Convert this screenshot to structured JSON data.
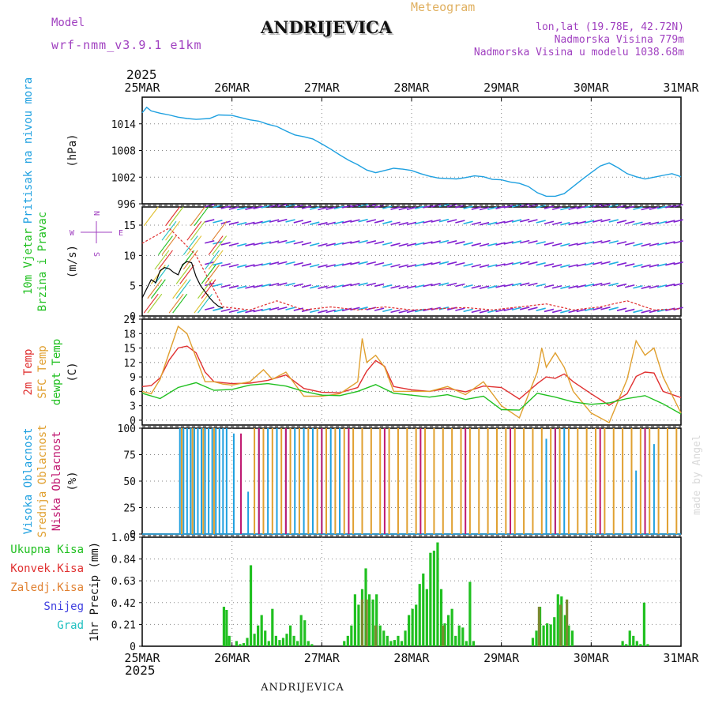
{
  "header": {
    "model_label": "Model",
    "model_name": "wrf-nmm_v3.9.1 e1km",
    "title": "ANDRIJEVICA",
    "meteogram_label": "Meteogram",
    "lonlat": "lon,lat (19.78E, 42.72N)",
    "elevation": "Nadmorska Visina 779m",
    "model_elevation": "Nadmorska Visina u modelu 1038.68m",
    "year_top": "2025",
    "year_bottom": "2025",
    "footer_station": "ANDRIJEVICA",
    "watermark": "made by Angel"
  },
  "colors": {
    "pressure": "#1ea0e0",
    "wind_speed": "#000000",
    "gust": "#e03030",
    "temp2m": "#e03030",
    "sfc": "#e0a030",
    "dew": "#20c020",
    "high_cloud": "#1ea0e0",
    "mid_cloud": "#e0a030",
    "low_cloud": "#c01870",
    "total_rain": "#20c020",
    "conv_rain": "#e03030",
    "frz_rain": "#e08030",
    "snow": "#4040e0",
    "hail": "#20c0c0",
    "axis_label_purple": "#a040c0"
  },
  "chart_data": [
    {
      "type": "line",
      "panel": "pressure",
      "ylabel": "(hPa)",
      "side_labels": [
        "Pritisak na nivou mora"
      ],
      "x_categories": [
        "25MAR",
        "26MAR",
        "27MAR",
        "28MAR",
        "29MAR",
        "30MAR",
        "31MAR"
      ],
      "ylim": [
        996,
        1020
      ],
      "yticks": [
        996,
        1002,
        1008,
        1014
      ],
      "series": [
        {
          "x": [
            0,
            0.05,
            0.1,
            0.2,
            0.3,
            0.4,
            0.5,
            0.6,
            0.75,
            0.85,
            1.0,
            1.1,
            1.2,
            1.3,
            1.4,
            1.5,
            1.6,
            1.7,
            1.8,
            1.9,
            2.0,
            2.1,
            2.2,
            2.3,
            2.4,
            2.5,
            2.6,
            2.7,
            2.8,
            2.9,
            3.0,
            3.1,
            3.2,
            3.3,
            3.4,
            3.5,
            3.6,
            3.7,
            3.8,
            3.9,
            4.0,
            4.1,
            4.2,
            4.3,
            4.4,
            4.5,
            4.6,
            4.7,
            4.8,
            4.9,
            5.0,
            5.1,
            5.2,
            5.3,
            5.4,
            5.5,
            5.6,
            5.7,
            5.8,
            5.9,
            6.0
          ],
          "values": [
            1016.5,
            1017.7,
            1016.9,
            1016.4,
            1016.0,
            1015.5,
            1015.2,
            1015.0,
            1015.2,
            1016.0,
            1015.9,
            1015.4,
            1014.9,
            1014.6,
            1013.9,
            1013.4,
            1012.4,
            1011.5,
            1011.1,
            1010.6,
            1009.5,
            1008.3,
            1007.0,
            1005.8,
            1004.8,
            1003.6,
            1003.0,
            1003.5,
            1004.0,
            1003.8,
            1003.5,
            1002.8,
            1002.2,
            1001.8,
            1001.7,
            1001.6,
            1001.9,
            1002.3,
            1002.1,
            1001.5,
            1001.4,
            1000.9,
            1000.6,
            999.9,
            998.5,
            997.7,
            997.7,
            998.3,
            999.9,
            1001.5,
            1003.0,
            1004.5,
            1005.2,
            1004.1,
            1002.8,
            1002.1,
            1001.6,
            1002.0,
            1002.4,
            1002.8,
            1002.1
          ]
        }
      ]
    },
    {
      "type": "line",
      "panel": "wind",
      "ylabel": "(m/s)",
      "side_labels": [
        "10m Vjetar",
        "Brzina i Pravac"
      ],
      "compass_labels": [
        "N",
        "W",
        "E",
        "S"
      ],
      "ylim": [
        0,
        18
      ],
      "yticks": [
        0,
        5,
        10,
        15
      ],
      "series": [
        {
          "name": "speed",
          "x": [
            0,
            0.05,
            0.1,
            0.15,
            0.2,
            0.25,
            0.3,
            0.35,
            0.4,
            0.45,
            0.5,
            0.55,
            0.6,
            0.65,
            0.7,
            0.75,
            0.8,
            0.85,
            0.9
          ],
          "values": [
            3.0,
            4.5,
            6.0,
            5.5,
            7.5,
            8.0,
            7.8,
            7.2,
            6.8,
            8.5,
            9.0,
            8.8,
            6.5,
            5.0,
            4.0,
            3.0,
            2.2,
            1.6,
            1.3
          ]
        },
        {
          "name": "gust",
          "x": [
            0,
            0.3,
            0.6,
            0.9,
            1.2,
            1.5,
            1.8,
            2.1,
            2.4,
            2.7,
            3.0,
            3.3,
            3.6,
            3.9,
            4.2,
            4.5,
            4.8,
            5.1,
            5.4,
            5.7,
            6.0
          ],
          "values": [
            12.0,
            14.5,
            10.0,
            1.5,
            1.0,
            2.5,
            1.0,
            1.5,
            1.0,
            1.5,
            1.0,
            1.2,
            1.4,
            1.0,
            1.5,
            2.0,
            1.0,
            1.5,
            2.5,
            1.0,
            1.2
          ]
        }
      ]
    },
    {
      "type": "line",
      "panel": "temperature",
      "ylabel": "(C)",
      "side_labels": [
        "2m Temp",
        "SFC Temp",
        "dewpt Temp"
      ],
      "ylim": [
        -1,
        21
      ],
      "yticks": [
        0,
        3,
        6,
        9,
        12,
        15,
        18,
        21
      ],
      "series": [
        {
          "name": "2m Temp",
          "x": [
            0,
            0.1,
            0.2,
            0.3,
            0.4,
            0.5,
            0.6,
            0.7,
            0.8,
            0.9,
            1.0,
            1.2,
            1.4,
            1.6,
            1.8,
            2.0,
            2.2,
            2.4,
            2.5,
            2.6,
            2.7,
            2.8,
            3.0,
            3.2,
            3.4,
            3.6,
            3.8,
            4.0,
            4.2,
            4.4,
            4.5,
            4.6,
            4.7,
            4.8,
            5.0,
            5.2,
            5.4,
            5.5,
            5.6,
            5.7,
            5.8,
            6.0
          ],
          "values": [
            7.0,
            7.2,
            8.8,
            12.5,
            15.0,
            15.4,
            14.0,
            10.0,
            8.0,
            7.8,
            7.6,
            7.7,
            8.3,
            9.4,
            6.6,
            5.8,
            5.7,
            6.8,
            10.2,
            12.4,
            11.2,
            7.0,
            6.3,
            6.0,
            6.6,
            5.9,
            7.1,
            6.8,
            4.4,
            7.6,
            9.0,
            8.7,
            9.6,
            8.0,
            5.5,
            3.1,
            5.5,
            9.1,
            10.0,
            9.8,
            6.0,
            4.7
          ]
        },
        {
          "name": "SFC Temp",
          "x": [
            0,
            0.1,
            0.2,
            0.3,
            0.4,
            0.5,
            0.6,
            0.7,
            0.8,
            0.9,
            1.0,
            1.2,
            1.35,
            1.45,
            1.6,
            1.8,
            2.0,
            2.2,
            2.4,
            2.45,
            2.5,
            2.6,
            2.7,
            2.8,
            3.0,
            3.2,
            3.4,
            3.6,
            3.8,
            4.0,
            4.2,
            4.4,
            4.45,
            4.5,
            4.6,
            4.7,
            4.8,
            5.0,
            5.2,
            5.4,
            5.5,
            5.6,
            5.7,
            5.8,
            6.0
          ],
          "values": [
            6.0,
            5.5,
            8.5,
            14.0,
            19.5,
            18.0,
            13.0,
            8.0,
            8.0,
            7.5,
            7.3,
            8.0,
            10.5,
            8.5,
            10.0,
            5.0,
            5.0,
            5.5,
            8.0,
            17.0,
            12.0,
            13.5,
            11.0,
            6.0,
            6.0,
            6.0,
            7.0,
            5.3,
            8.0,
            3.0,
            0.5,
            10.0,
            15.0,
            11.0,
            14.0,
            11.0,
            6.0,
            1.5,
            -0.5,
            8.5,
            16.5,
            13.5,
            15.0,
            9.0,
            1.5
          ]
        },
        {
          "name": "dewpt Temp",
          "x": [
            0,
            0.2,
            0.4,
            0.6,
            0.8,
            1.0,
            1.2,
            1.4,
            1.6,
            1.8,
            2.0,
            2.2,
            2.4,
            2.6,
            2.8,
            3.0,
            3.2,
            3.4,
            3.6,
            3.8,
            4.0,
            4.2,
            4.4,
            4.6,
            4.8,
            5.0,
            5.2,
            5.4,
            5.6,
            5.8,
            6.0
          ],
          "values": [
            5.6,
            4.5,
            6.8,
            7.8,
            6.2,
            6.4,
            7.3,
            7.6,
            7.1,
            6.0,
            5.2,
            5.1,
            6.0,
            7.4,
            5.6,
            5.2,
            4.8,
            5.3,
            4.3,
            5.0,
            2.2,
            2.1,
            5.6,
            4.8,
            3.8,
            3.3,
            3.6,
            4.5,
            5.1,
            3.4,
            1.3
          ]
        }
      ]
    },
    {
      "type": "bar",
      "panel": "cloud",
      "ylabel": "(%)",
      "side_labels": [
        "Visoka Oblacnost",
        "Srednja Oblacnost",
        "Niska Oblacnost"
      ],
      "ylim": [
        0,
        100
      ],
      "yticks": [
        0,
        25,
        50,
        75,
        100
      ],
      "series": [
        {
          "name": "Visoka Oblacnost",
          "x": [
            0.42,
            0.46,
            0.5,
            0.54,
            0.58,
            0.62,
            0.66,
            0.7,
            0.74,
            0.78,
            0.82,
            0.86,
            0.9,
            0.94,
            1.02,
            1.1,
            1.18,
            1.3,
            1.4,
            1.5,
            1.6,
            1.7,
            1.8,
            1.9,
            2.0,
            2.1,
            2.2,
            4.5,
            4.6,
            4.7,
            5.5,
            5.6,
            5.7
          ],
          "values": [
            100,
            100,
            100,
            100,
            100,
            100,
            100,
            100,
            100,
            100,
            100,
            100,
            100,
            100,
            95,
            65,
            40,
            100,
            100,
            100,
            100,
            100,
            100,
            100,
            100,
            100,
            100,
            90,
            100,
            100,
            60,
            100,
            85
          ]
        },
        {
          "name": "Srednja Oblacnost",
          "x": [
            0.44,
            0.56,
            0.68,
            0.8,
            1.25,
            1.35,
            1.45,
            1.55,
            1.65,
            1.75,
            1.85,
            1.95,
            2.05,
            2.15,
            2.25,
            2.35,
            2.45,
            2.55,
            2.65,
            2.75,
            2.85,
            2.95,
            3.05,
            3.15,
            3.25,
            3.35,
            3.45,
            3.55,
            3.65,
            3.75,
            3.85,
            3.95,
            4.05,
            4.15,
            4.25,
            4.35,
            4.45,
            4.55,
            4.65,
            4.75,
            4.85,
            4.95,
            5.05,
            5.15,
            5.25,
            5.35,
            5.45,
            5.55,
            5.65,
            5.75,
            5.85,
            5.95
          ],
          "values": [
            100,
            100,
            100,
            100,
            100,
            100,
            100,
            100,
            100,
            100,
            100,
            100,
            100,
            100,
            100,
            100,
            100,
            100,
            100,
            100,
            100,
            100,
            100,
            100,
            100,
            100,
            100,
            100,
            100,
            100,
            100,
            100,
            100,
            100,
            100,
            100,
            100,
            100,
            100,
            100,
            100,
            100,
            100,
            100,
            100,
            100,
            100,
            100,
            100,
            100,
            100,
            100
          ]
        },
        {
          "name": "Niska Oblacnost",
          "x": [
            1.1,
            1.3,
            1.6,
            2.0,
            2.3,
            2.7,
            3.1,
            3.6,
            4.1,
            4.6,
            5.1,
            5.6
          ],
          "values": [
            95,
            100,
            100,
            100,
            100,
            100,
            100,
            100,
            100,
            100,
            100,
            100
          ]
        }
      ]
    },
    {
      "type": "bar",
      "panel": "precip",
      "ylabel": "1hr Precip (mm)",
      "side_labels": [
        "Ukupna Kisa",
        "Konvek.Kisa",
        "Zaledj.Kisa",
        "Snijeg",
        "Grad"
      ],
      "x_categories": [
        "25MAR",
        "26MAR",
        "27MAR",
        "28MAR",
        "29MAR",
        "30MAR",
        "31MAR"
      ],
      "ylim": [
        0,
        1.05
      ],
      "yticks": [
        0,
        0.21,
        0.42,
        0.63,
        0.84,
        1.05
      ],
      "series": [
        {
          "name": "Ukupna Kisa",
          "x": [
            0.91,
            0.94,
            0.97,
            1.05,
            1.09,
            1.13,
            1.17,
            1.21,
            1.25,
            1.29,
            1.33,
            1.37,
            1.41,
            1.45,
            1.49,
            1.53,
            1.57,
            1.61,
            1.65,
            1.69,
            1.73,
            1.77,
            1.81,
            1.85,
            1.89,
            2.25,
            2.29,
            2.33,
            2.37,
            2.41,
            2.45,
            2.49,
            2.53,
            2.57,
            2.61,
            2.65,
            2.69,
            2.73,
            2.77,
            2.81,
            2.85,
            2.89,
            2.93,
            2.97,
            3.01,
            3.05,
            3.09,
            3.13,
            3.17,
            3.21,
            3.25,
            3.29,
            3.33,
            3.37,
            3.41,
            3.45,
            3.49,
            3.53,
            3.57,
            3.61,
            3.65,
            3.69,
            4.35,
            4.39,
            4.43,
            4.47,
            4.51,
            4.55,
            4.59,
            4.63,
            4.67,
            4.71,
            4.75,
            4.79,
            5.35,
            5.39,
            5.43,
            5.47,
            5.51,
            5.55,
            5.59,
            5.63
          ],
          "values": [
            0.38,
            0.35,
            0.1,
            0.05,
            0.02,
            0.03,
            0.08,
            0.78,
            0.12,
            0.2,
            0.3,
            0.15,
            0.05,
            0.36,
            0.1,
            0.06,
            0.08,
            0.12,
            0.2,
            0.1,
            0.05,
            0.3,
            0.25,
            0.05,
            0.02,
            0.05,
            0.1,
            0.2,
            0.5,
            0.4,
            0.55,
            0.75,
            0.5,
            0.45,
            0.5,
            0.2,
            0.15,
            0.1,
            0.05,
            0.06,
            0.1,
            0.05,
            0.15,
            0.3,
            0.36,
            0.4,
            0.6,
            0.7,
            0.55,
            0.9,
            0.92,
            1.0,
            0.55,
            0.22,
            0.3,
            0.36,
            0.1,
            0.2,
            0.18,
            0.05,
            0.62,
            0.05,
            0.08,
            0.15,
            0.38,
            0.2,
            0.22,
            0.21,
            0.28,
            0.5,
            0.48,
            0.3,
            0.2,
            0.15,
            0.05,
            0.02,
            0.15,
            0.1,
            0.05,
            0.02,
            0.42,
            0.02
          ]
        },
        {
          "name": "Konvek.Kisa",
          "x": [
            2.45,
            2.5,
            2.6,
            3.35,
            4.42,
            4.66,
            4.73
          ],
          "values": [
            0.45,
            0.45,
            0.2,
            0.2,
            0.38,
            0.4,
            0.45
          ]
        }
      ]
    }
  ]
}
